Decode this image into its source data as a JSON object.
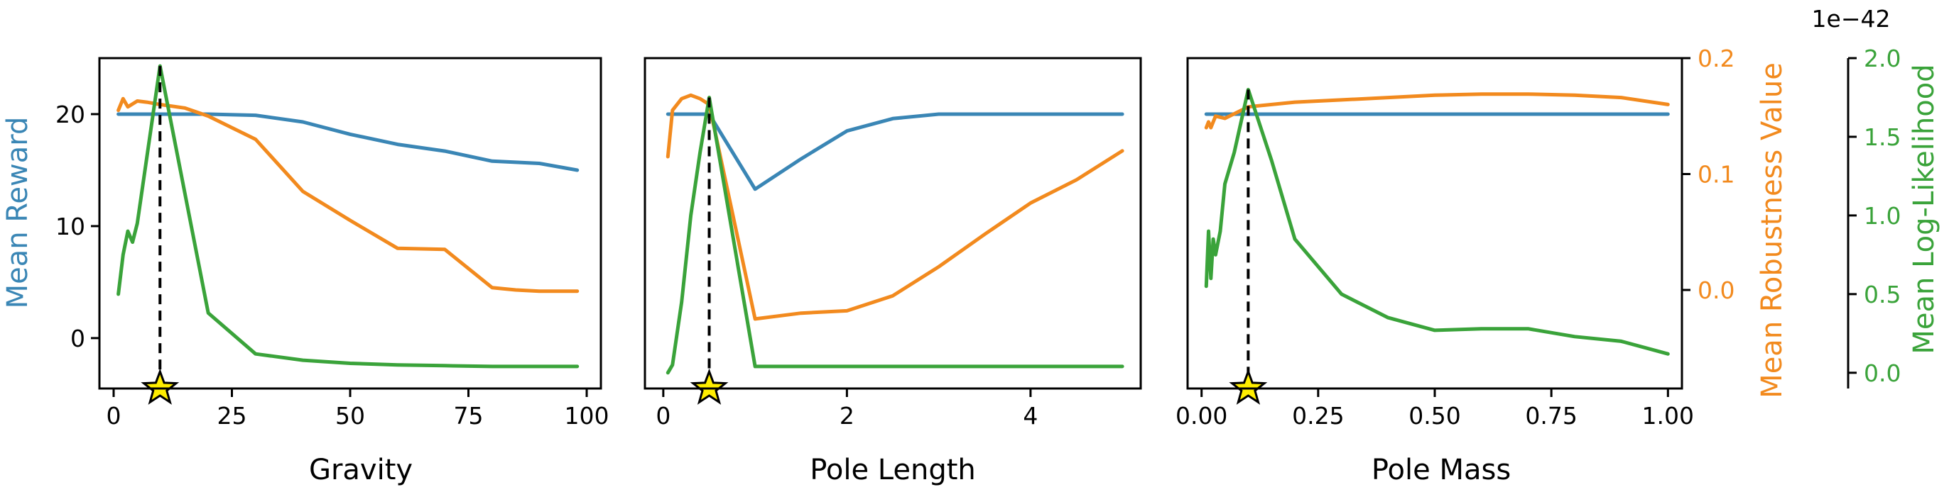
{
  "colors": {
    "reward": "#3a86b5",
    "robustness": "#f28a1e",
    "loglik": "#3aa33a",
    "star_fill": "#ffee00"
  },
  "axes": {
    "reward_label": "Mean Reward",
    "robustness_label": "Mean Robustness Value",
    "loglik_label": "Mean Log-Likelihood",
    "loglik_offset": "1e−42",
    "reward_ylim": [
      -4.5,
      25
    ],
    "robustness_ylim": [
      -0.085,
      0.2
    ],
    "loglik_ylim": [
      -0.1,
      2.0
    ],
    "reward_ticks": [
      0,
      10,
      20
    ],
    "robustness_ticks": [
      0.0,
      0.1,
      0.2
    ],
    "robustness_tick_labels": [
      "0.0",
      "0.1",
      "0.2"
    ],
    "loglik_ticks": [
      0.0,
      0.5,
      1.0,
      1.5,
      2.0
    ],
    "loglik_tick_labels": [
      "0.0",
      "0.5",
      "1.0",
      "1.5",
      "2.0"
    ]
  },
  "chart_data": [
    {
      "type": "line",
      "xlabel": "Gravity",
      "xlim": [
        -3,
        103
      ],
      "xticks": [
        0,
        25,
        50,
        75,
        100
      ],
      "xtick_labels": [
        "0",
        "25",
        "50",
        "75",
        "100"
      ],
      "nominal_x": 9.8,
      "series": [
        {
          "name": "Mean Reward",
          "axis": "reward",
          "x": [
            1,
            10,
            20,
            30,
            40,
            50,
            60,
            70,
            80,
            90,
            98
          ],
          "values": [
            20,
            20,
            20,
            19.9,
            19.3,
            18.2,
            17.3,
            16.7,
            15.8,
            15.6,
            15.0
          ]
        },
        {
          "name": "Mean Robustness Value",
          "axis": "robustness",
          "x": [
            1,
            2,
            3,
            5,
            7,
            9.8,
            15,
            20,
            30,
            40,
            50,
            60,
            70,
            80,
            85,
            90,
            98
          ],
          "values": [
            0.155,
            0.165,
            0.158,
            0.163,
            0.162,
            0.16,
            0.157,
            0.15,
            0.13,
            0.085,
            0.06,
            0.036,
            0.035,
            0.002,
            0.0,
            -0.001,
            -0.001
          ]
        },
        {
          "name": "Mean Log-Likelihood",
          "axis": "loglik",
          "x": [
            1,
            2,
            3,
            4,
            5,
            9.8,
            20,
            30,
            40,
            50,
            60,
            70,
            80,
            90,
            98
          ],
          "values": [
            0.5,
            0.75,
            0.9,
            0.83,
            0.95,
            1.95,
            0.38,
            0.12,
            0.08,
            0.06,
            0.05,
            0.045,
            0.04,
            0.04,
            0.04
          ]
        }
      ]
    },
    {
      "type": "line",
      "xlabel": "Pole Length",
      "xlim": [
        -0.2,
        5.2
      ],
      "xticks": [
        0,
        2,
        4
      ],
      "xtick_labels": [
        "0",
        "2",
        "4"
      ],
      "nominal_x": 0.5,
      "series": [
        {
          "name": "Mean Reward",
          "axis": "reward",
          "x": [
            0.05,
            0.5,
            1.0,
            1.5,
            2.0,
            2.5,
            3.0,
            3.5,
            4.0,
            4.5,
            5.0
          ],
          "values": [
            20,
            20,
            13.3,
            16,
            18.5,
            19.6,
            20,
            20,
            20,
            20,
            20
          ]
        },
        {
          "name": "Mean Robustness Value",
          "axis": "robustness",
          "x": [
            0.05,
            0.1,
            0.2,
            0.3,
            0.4,
            0.5,
            1.0,
            1.5,
            2.0,
            2.5,
            3.0,
            3.5,
            4.0,
            4.5,
            5.0
          ],
          "values": [
            0.115,
            0.155,
            0.165,
            0.168,
            0.165,
            0.16,
            -0.025,
            -0.02,
            -0.018,
            -0.005,
            0.02,
            0.048,
            0.075,
            0.095,
            0.12
          ]
        },
        {
          "name": "Mean Log-Likelihood",
          "axis": "loglik",
          "x": [
            0.05,
            0.1,
            0.2,
            0.3,
            0.4,
            0.5,
            1.0,
            1.5,
            2.0,
            3.0,
            4.0,
            5.0
          ],
          "values": [
            0.0,
            0.05,
            0.45,
            1.0,
            1.4,
            1.75,
            0.04,
            0.04,
            0.04,
            0.04,
            0.04,
            0.04
          ]
        }
      ]
    },
    {
      "type": "line",
      "xlabel": "Pole Mass",
      "xlim": [
        -0.03,
        1.03
      ],
      "xticks": [
        0.0,
        0.25,
        0.5,
        0.75,
        1.0
      ],
      "xtick_labels": [
        "0.00",
        "0.25",
        "0.50",
        "0.75",
        "1.00"
      ],
      "nominal_x": 0.1,
      "series": [
        {
          "name": "Mean Reward",
          "axis": "reward",
          "x": [
            0.01,
            0.1,
            0.2,
            0.3,
            0.4,
            0.5,
            0.6,
            0.7,
            0.8,
            0.9,
            1.0
          ],
          "values": [
            20,
            20,
            20,
            20,
            20,
            20,
            20,
            20,
            20,
            20,
            20
          ]
        },
        {
          "name": "Mean Robustness Value",
          "axis": "robustness",
          "x": [
            0.01,
            0.015,
            0.02,
            0.03,
            0.05,
            0.07,
            0.1,
            0.2,
            0.3,
            0.4,
            0.5,
            0.6,
            0.7,
            0.8,
            0.9,
            1.0
          ],
          "values": [
            0.14,
            0.145,
            0.14,
            0.15,
            0.148,
            0.152,
            0.158,
            0.162,
            0.164,
            0.166,
            0.168,
            0.169,
            0.169,
            0.168,
            0.166,
            0.16
          ]
        },
        {
          "name": "Mean Log-Likelihood",
          "axis": "loglik",
          "x": [
            0.01,
            0.015,
            0.02,
            0.025,
            0.03,
            0.04,
            0.05,
            0.07,
            0.1,
            0.15,
            0.2,
            0.3,
            0.4,
            0.5,
            0.6,
            0.7,
            0.8,
            0.9,
            1.0
          ],
          "values": [
            0.55,
            0.9,
            0.6,
            0.85,
            0.75,
            0.9,
            1.2,
            1.4,
            1.8,
            1.35,
            0.85,
            0.5,
            0.35,
            0.27,
            0.28,
            0.28,
            0.23,
            0.2,
            0.12
          ]
        }
      ]
    }
  ]
}
